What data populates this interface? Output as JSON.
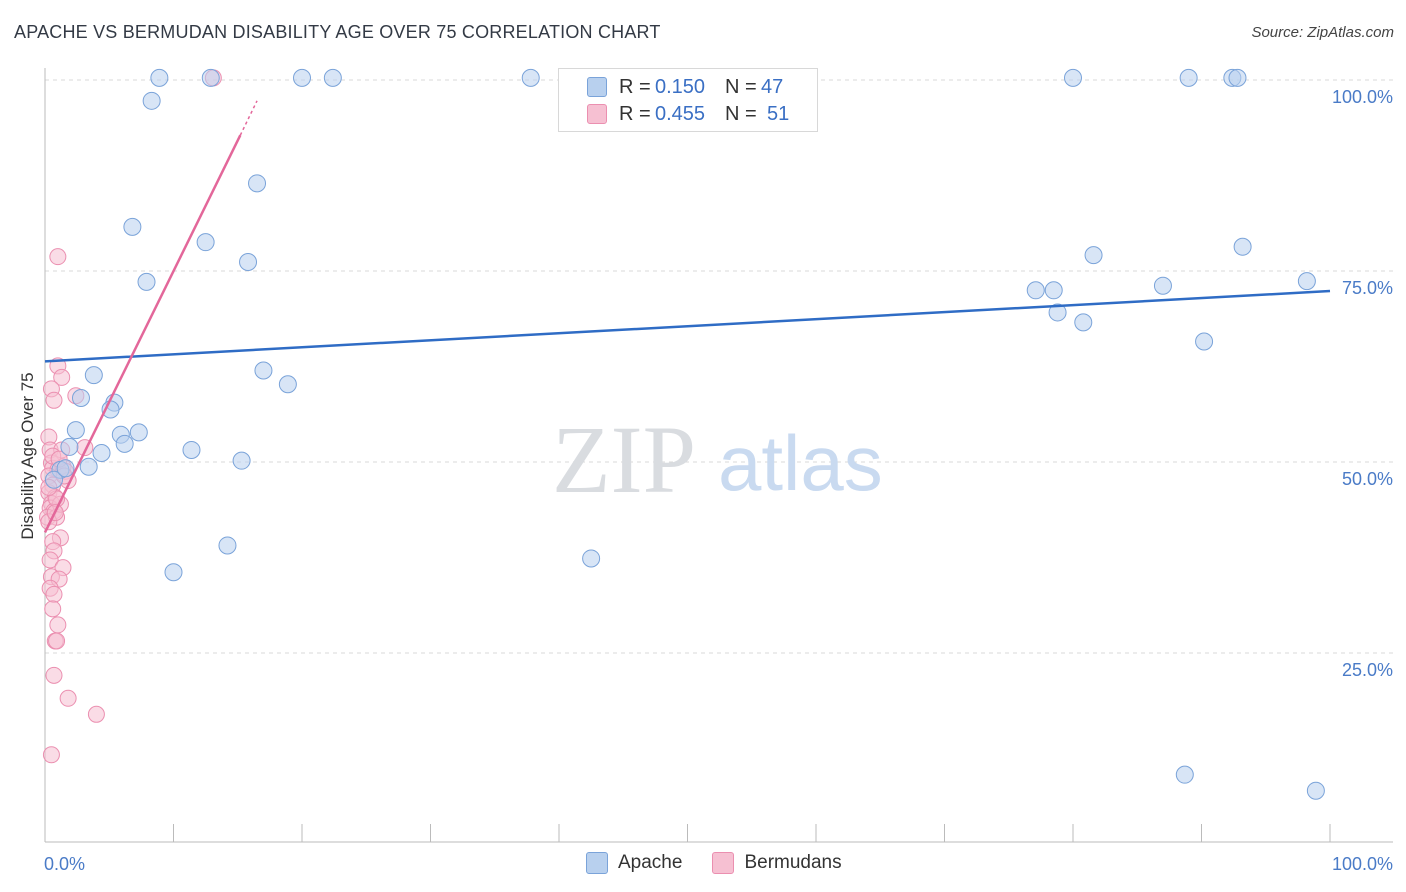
{
  "header": {
    "title": "APACHE VS BERMUDAN DISABILITY AGE OVER 75 CORRELATION CHART",
    "source": "Source: ZipAtlas.com"
  },
  "watermark": {
    "zip": "ZIP",
    "atlas": "atlas"
  },
  "colors": {
    "apache_fill": "#b8d0ee",
    "apache_stroke": "#7aa3d9",
    "apache_line": "#2f6cc5",
    "bermudan_fill": "#f6c0d2",
    "bermudan_stroke": "#eb8fb0",
    "bermudan_line": "#e3679a",
    "grid": "#d9d9d9",
    "axis_text": "#4a7bc7"
  },
  "legend": {
    "rows": [
      {
        "r_label": "R =",
        "r_value": "0.150",
        "n_label": "N =",
        "n_value": "47"
      },
      {
        "r_label": "R =",
        "r_value": "0.455",
        "n_label": "N =",
        "n_value": "51"
      }
    ]
  },
  "bottom_legend": {
    "apache": "Apache",
    "bermudans": "Bermudans"
  },
  "chart_data": {
    "type": "scatter",
    "title": "APACHE VS BERMUDAN DISABILITY AGE OVER 75 CORRELATION CHART",
    "xlabel": "",
    "ylabel": "Disability Age Over 75",
    "xlim": [
      0,
      100
    ],
    "ylim": [
      0,
      105
    ],
    "x_tick_labels": {
      "left": "0.0%",
      "right": "100.0%"
    },
    "y_ticks": [
      {
        "value": 25,
        "label": "25.0%"
      },
      {
        "value": 50,
        "label": "50.0%"
      },
      {
        "value": 75,
        "label": "75.0%"
      },
      {
        "value": 100,
        "label": "100.0%"
      }
    ],
    "series": [
      {
        "name": "Apache",
        "r": 0.15,
        "n": 47,
        "trend": {
          "x0": 0,
          "y0": 65.4,
          "x1": 100,
          "y1": 74.6
        },
        "points": [
          [
            8.9,
            102.5
          ],
          [
            12.9,
            102.5
          ],
          [
            20.0,
            102.5
          ],
          [
            22.4,
            102.5
          ],
          [
            37.8,
            102.5
          ],
          [
            80.0,
            102.5
          ],
          [
            89.0,
            102.5
          ],
          [
            92.4,
            102.5
          ],
          [
            92.8,
            102.5
          ],
          [
            8.3,
            99.5
          ],
          [
            16.5,
            88.7
          ],
          [
            6.8,
            83.0
          ],
          [
            12.5,
            81.0
          ],
          [
            15.8,
            78.4
          ],
          [
            7.9,
            75.8
          ],
          [
            81.6,
            79.3
          ],
          [
            93.2,
            80.4
          ],
          [
            98.2,
            75.9
          ],
          [
            87.0,
            75.3
          ],
          [
            77.1,
            74.7
          ],
          [
            78.5,
            74.7
          ],
          [
            78.8,
            71.8
          ],
          [
            80.8,
            70.5
          ],
          [
            90.2,
            68.0
          ],
          [
            3.8,
            63.6
          ],
          [
            17.0,
            64.2
          ],
          [
            18.9,
            62.4
          ],
          [
            2.8,
            60.6
          ],
          [
            5.4,
            60.0
          ],
          [
            5.1,
            59.1
          ],
          [
            2.4,
            56.4
          ],
          [
            5.9,
            55.8
          ],
          [
            7.3,
            56.1
          ],
          [
            6.2,
            54.6
          ],
          [
            1.9,
            54.2
          ],
          [
            11.4,
            53.8
          ],
          [
            4.4,
            53.4
          ],
          [
            15.3,
            52.4
          ],
          [
            3.4,
            51.6
          ],
          [
            1.2,
            51.2
          ],
          [
            0.7,
            49.9
          ],
          [
            14.2,
            41.3
          ],
          [
            10.0,
            37.8
          ],
          [
            42.5,
            39.6
          ],
          [
            88.7,
            11.3
          ],
          [
            98.9,
            9.2
          ],
          [
            1.6,
            51.4
          ]
        ]
      },
      {
        "name": "Bermudans",
        "r": 0.455,
        "n": 51,
        "trend": {
          "x0": 0,
          "y0": 43.0,
          "x1": 15.2,
          "y1": 95.0
        },
        "trend_dashed": {
          "x0": 15.2,
          "y0": 95.0,
          "x1": 16.5,
          "y1": 99.5
        },
        "points": [
          [
            13.1,
            102.5
          ],
          [
            1.0,
            79.1
          ],
          [
            1.0,
            64.8
          ],
          [
            1.3,
            63.3
          ],
          [
            0.5,
            61.8
          ],
          [
            0.7,
            60.3
          ],
          [
            2.4,
            60.9
          ],
          [
            0.3,
            55.5
          ],
          [
            0.4,
            53.8
          ],
          [
            1.3,
            53.8
          ],
          [
            3.1,
            54.1
          ],
          [
            0.5,
            52.1
          ],
          [
            0.6,
            51.4
          ],
          [
            1.0,
            51.2
          ],
          [
            1.4,
            51.6
          ],
          [
            1.6,
            51.0
          ],
          [
            0.3,
            50.4
          ],
          [
            1.8,
            49.8
          ],
          [
            0.6,
            49.2
          ],
          [
            0.3,
            48.2
          ],
          [
            0.8,
            47.6
          ],
          [
            0.5,
            46.8
          ],
          [
            0.4,
            46.2
          ],
          [
            0.7,
            45.8
          ],
          [
            0.2,
            45.0
          ],
          [
            0.9,
            45.0
          ],
          [
            0.3,
            44.4
          ],
          [
            1.2,
            42.3
          ],
          [
            0.6,
            41.8
          ],
          [
            0.7,
            40.6
          ],
          [
            0.4,
            39.4
          ],
          [
            1.4,
            38.4
          ],
          [
            0.5,
            37.2
          ],
          [
            1.1,
            36.9
          ],
          [
            0.4,
            35.7
          ],
          [
            0.7,
            34.9
          ],
          [
            0.6,
            33.0
          ],
          [
            1.0,
            30.9
          ],
          [
            0.8,
            28.8
          ],
          [
            0.9,
            28.8
          ],
          [
            0.7,
            24.3
          ],
          [
            1.8,
            21.3
          ],
          [
            4.0,
            19.2
          ],
          [
            0.5,
            13.9
          ],
          [
            1.2,
            46.7
          ],
          [
            0.9,
            47.4
          ],
          [
            0.3,
            48.9
          ],
          [
            1.5,
            50.4
          ],
          [
            0.6,
            53.0
          ],
          [
            1.1,
            52.6
          ],
          [
            0.8,
            45.6
          ]
        ]
      }
    ]
  }
}
